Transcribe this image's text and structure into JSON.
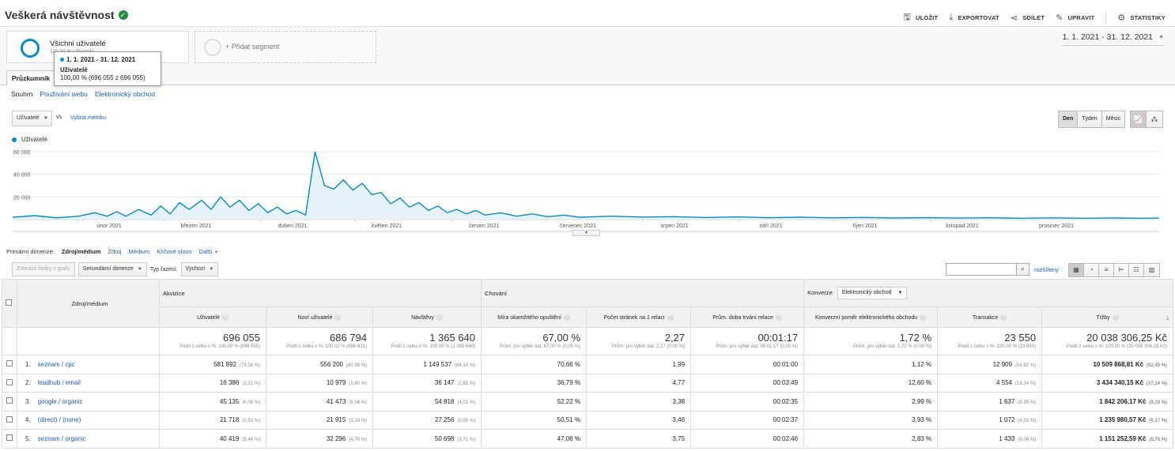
{
  "header": {
    "title": "Veškerá návštěvnost",
    "actions": [
      "ULOŽIT",
      "EXPORTOVAT",
      "SDÍLET",
      "UPRAVIT",
      "STATISTIKY"
    ]
  },
  "segments": {
    "active": {
      "name": "Všichni uživatelé",
      "sub": "100,00 % Uživatelé"
    },
    "add": "+ Přidat segment"
  },
  "date_range": "1. 1. 2021 - 31. 12. 2021",
  "tooltip": {
    "date": "1. 1. 2021 - 31. 12. 2021",
    "metric": "Uživatelé",
    "value": "100,00 % (696 055 z 696 055)"
  },
  "tab": "Průzkumník",
  "subtabs": {
    "current": "Souhrn",
    "links": [
      "Používání webu",
      "Elektronický obchod"
    ]
  },
  "chart_controls": {
    "metric": "Uživatelé",
    "vs": "vs.",
    "pick_metric": "Vybrat metriku",
    "periods": [
      "Den",
      "Týden",
      "Měsíc"
    ],
    "active_period": "Den"
  },
  "chart_data": {
    "type": "area",
    "series": [
      {
        "name": "Uživatelé",
        "color": "#058dc7"
      }
    ],
    "ylim": [
      0,
      60000
    ],
    "yticks": [
      "60 000",
      "40 000",
      "20 000"
    ],
    "xticks": [
      "únor 2021",
      "březen 2021",
      "duben 2021",
      "květen 2021",
      "červen 2021",
      "červenec 2021",
      "srpen 2021",
      "září 2021",
      "říjen 2021",
      "listopad 2021",
      "prosinec 2021"
    ],
    "points": [
      [
        0,
        2000
      ],
      [
        7,
        3500
      ],
      [
        14,
        1500
      ],
      [
        21,
        3000
      ],
      [
        26,
        6000
      ],
      [
        30,
        3000
      ],
      [
        33,
        7000
      ],
      [
        36,
        3000
      ],
      [
        40,
        9000
      ],
      [
        44,
        4000
      ],
      [
        47,
        12000
      ],
      [
        50,
        5000
      ],
      [
        53,
        15000
      ],
      [
        56,
        9000
      ],
      [
        60,
        17000
      ],
      [
        63,
        9000
      ],
      [
        66,
        20000
      ],
      [
        69,
        11000
      ],
      [
        72,
        17000
      ],
      [
        75,
        8000
      ],
      [
        78,
        14000
      ],
      [
        81,
        6000
      ],
      [
        84,
        11000
      ],
      [
        87,
        5000
      ],
      [
        90,
        8000
      ],
      [
        93,
        4000
      ],
      [
        96,
        60000
      ],
      [
        99,
        30000
      ],
      [
        102,
        27000
      ],
      [
        105,
        35000
      ],
      [
        108,
        26000
      ],
      [
        111,
        32000
      ],
      [
        114,
        22000
      ],
      [
        117,
        24000
      ],
      [
        120,
        14000
      ],
      [
        123,
        19000
      ],
      [
        126,
        11000
      ],
      [
        129,
        15000
      ],
      [
        132,
        8000
      ],
      [
        135,
        12000
      ],
      [
        138,
        6000
      ],
      [
        141,
        9000
      ],
      [
        144,
        5000
      ],
      [
        147,
        8000
      ],
      [
        150,
        4000
      ],
      [
        155,
        6000
      ],
      [
        160,
        3000
      ],
      [
        165,
        5000
      ],
      [
        170,
        2500
      ],
      [
        175,
        4000
      ],
      [
        180,
        2000
      ],
      [
        190,
        3000
      ],
      [
        200,
        2200
      ],
      [
        210,
        2600
      ],
      [
        220,
        1800
      ],
      [
        230,
        2400
      ],
      [
        240,
        1600
      ],
      [
        250,
        2100
      ],
      [
        260,
        1500
      ],
      [
        270,
        1900
      ],
      [
        280,
        1400
      ],
      [
        290,
        1700
      ],
      [
        300,
        1300
      ],
      [
        310,
        1600
      ],
      [
        320,
        1200
      ],
      [
        330,
        1500
      ],
      [
        340,
        1200
      ],
      [
        350,
        1400
      ],
      [
        358,
        1200
      ],
      [
        364,
        1300
      ]
    ]
  },
  "primary_dimension": {
    "label": "Primární dimenze:",
    "current": "Zdroj/médium",
    "links": [
      "Zdroj",
      "Médium",
      "Klíčové slovo",
      "Další"
    ]
  },
  "table_tools": {
    "plot_rows": "Zobrazit řádky v grafu",
    "secondary_dim": "Sekundární dimenze",
    "sort_label": "Typ řazení:",
    "sort_value": "Výchozí",
    "advanced": "rozšířený"
  },
  "table": {
    "dim_header": "Zdroj/médium",
    "groups": {
      "acq": "Akvizice",
      "beh": "Chování",
      "conv": "Konverze",
      "conv_select": "Elektronický obchod"
    },
    "columns": [
      "Uživatelé",
      "Noví uživatelé",
      "Návštěvy",
      "Míra okamžitého opuštění",
      "Počet stránek na 1 relaci",
      "Prům. doba trvání relace",
      "Konverzní poměr elektronického obchodu",
      "Transakce",
      "Tržby"
    ],
    "totals": [
      {
        "value": "696 055",
        "sub": "Podíl z celku v %: 100,00 % (696 055)"
      },
      {
        "value": "686 794",
        "sub": "Podíl z celku v %: 100,02 % (686 631)"
      },
      {
        "value": "1 365 640",
        "sub": "Podíl z celku v %: 100,00 % (1 365 640)"
      },
      {
        "value": "67,00 %",
        "sub": "Prům. pro výběr dat: 67,00 % (0,00 %)"
      },
      {
        "value": "2,27",
        "sub": "Prům. pro výběr dat: 2,27 (0,00 %)"
      },
      {
        "value": "00:01:17",
        "sub": "Prům. pro výběr dat: 00:01:17 (0,00 %)"
      },
      {
        "value": "1,72 %",
        "sub": "Prům. pro výběr dat: 1,72 % (0,00 %)"
      },
      {
        "value": "23 550",
        "sub": "Podíl z celku v %: 100,00 % (23 550)"
      },
      {
        "value": "20 038 306,25 Kč",
        "sub": "Podíl z celku v %: 100,00 % (20 038 306,25 Kč)"
      }
    ],
    "rows": [
      {
        "idx": "1.",
        "src": "seznam / cpc",
        "users": "581 892",
        "users_pct": "(78,38 %)",
        "new": "556 200",
        "new_pct": "(80,98 %)",
        "sessions": "1 149 537",
        "sessions_pct": "(84,18 %)",
        "bounce": "70,66 %",
        "pages": "1,99",
        "duration": "00:01:00",
        "conv": "1,12 %",
        "trans": "12 909",
        "trans_pct": "(54,82 %)",
        "rev": "10 509 868,81 Kč",
        "rev_pct": "(52,45 %)"
      },
      {
        "idx": "2.",
        "src": "leadhub / email",
        "users": "16 386",
        "users_pct": "(2,21 %)",
        "new": "10 979",
        "new_pct": "(1,60 %)",
        "sessions": "36 147",
        "sessions_pct": "(2,65 %)",
        "bounce": "36,79 %",
        "pages": "4,77",
        "duration": "00:03:49",
        "conv": "12,60 %",
        "trans": "4 554",
        "trans_pct": "(19,34 %)",
        "rev": "3 434 340,15 Kč",
        "rev_pct": "(17,14 %)"
      },
      {
        "idx": "3.",
        "src": "google / organic",
        "users": "45 135",
        "users_pct": "(6,08 %)",
        "new": "41 473",
        "new_pct": "(6,04 %)",
        "sessions": "54 818",
        "sessions_pct": "(4,01 %)",
        "bounce": "52,22 %",
        "pages": "3,38",
        "duration": "00:02:35",
        "conv": "2,99 %",
        "trans": "1 637",
        "trans_pct": "(6,95 %)",
        "rev": "1 842 206,17 Kč",
        "rev_pct": "(9,19 %)"
      },
      {
        "idx": "4.",
        "src": "(direct) / (none)",
        "users": "21 718",
        "users_pct": "(2,93 %)",
        "new": "21 915",
        "new_pct": "(3,19 %)",
        "sessions": "27 256",
        "sessions_pct": "(2,00 %)",
        "bounce": "50,51 %",
        "pages": "3,46",
        "duration": "00:02:37",
        "conv": "3,93 %",
        "trans": "1 072",
        "trans_pct": "(4,55 %)",
        "rev": "1 235 980,57 Kč",
        "rev_pct": "(6,17 %)"
      },
      {
        "idx": "5.",
        "src": "seznam / organic",
        "users": "40 419",
        "users_pct": "(5,44 %)",
        "new": "32 296",
        "new_pct": "(4,70 %)",
        "sessions": "50 698",
        "sessions_pct": "(3,71 %)",
        "bounce": "47,06 %",
        "pages": "3,75",
        "duration": "00:02:46",
        "conv": "2,83 %",
        "trans": "1 433",
        "trans_pct": "(6,08 %)",
        "rev": "1 151 252,59 Kč",
        "rev_pct": "(5,75 %)"
      }
    ]
  }
}
